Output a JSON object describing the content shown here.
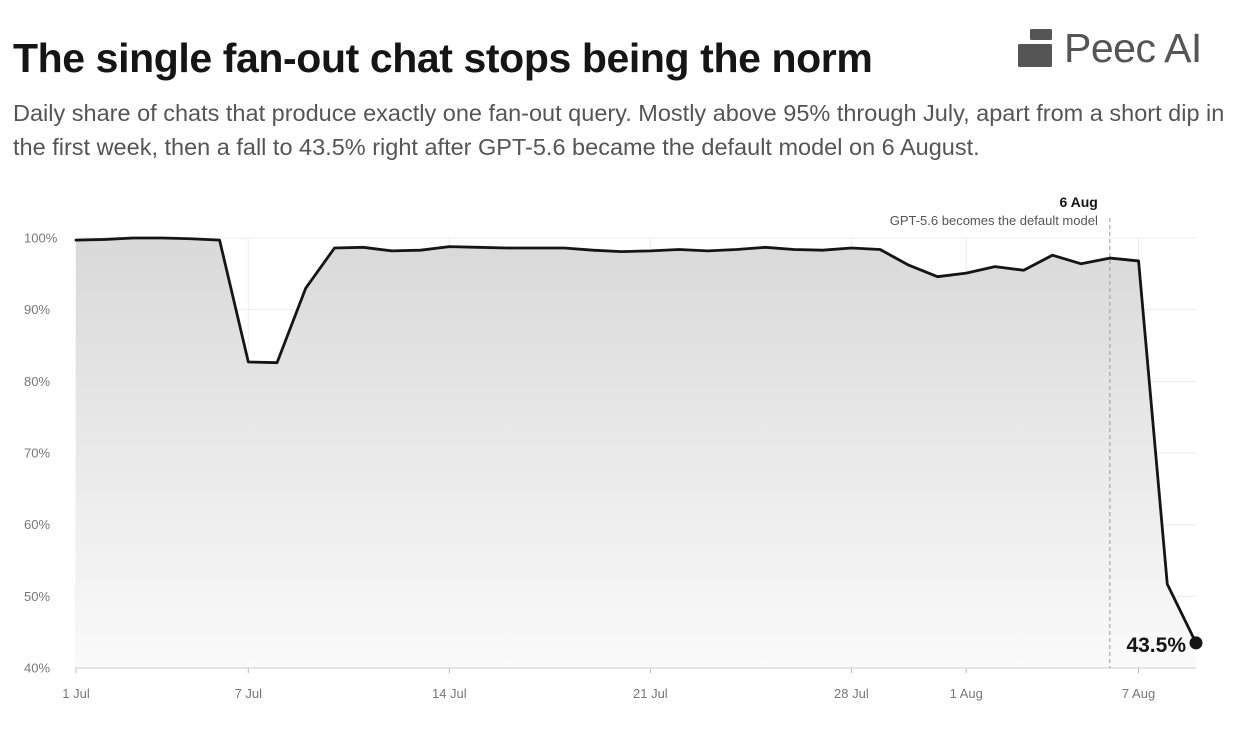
{
  "title": "The single fan-out chat stops being the norm",
  "subtitle": "Daily share of chats that produce exactly one fan-out query. Mostly above 95% through July, apart from a short dip in the first week, then a fall to 43.5% right after GPT-5.6 became the default model on 6 August.",
  "brand": {
    "name": "Peec AI",
    "icon": "peec-ai-logo-icon"
  },
  "colors": {
    "line": "#151515",
    "grid": "#ececec",
    "area_top": "#d9d9d9",
    "area_bottom": "#fafafa"
  },
  "chart_data": {
    "type": "area",
    "x_type": "date",
    "x": [
      "2025-07-01",
      "2025-07-02",
      "2025-07-03",
      "2025-07-04",
      "2025-07-05",
      "2025-07-06",
      "2025-07-07",
      "2025-07-08",
      "2025-07-09",
      "2025-07-10",
      "2025-07-11",
      "2025-07-12",
      "2025-07-13",
      "2025-07-14",
      "2025-07-15",
      "2025-07-16",
      "2025-07-17",
      "2025-07-18",
      "2025-07-19",
      "2025-07-20",
      "2025-07-21",
      "2025-07-22",
      "2025-07-23",
      "2025-07-24",
      "2025-07-25",
      "2025-07-26",
      "2025-07-27",
      "2025-07-28",
      "2025-07-29",
      "2025-07-30",
      "2025-07-31",
      "2025-08-01",
      "2025-08-02",
      "2025-08-03",
      "2025-08-04",
      "2025-08-05",
      "2025-08-06",
      "2025-08-07",
      "2025-08-08",
      "2025-08-09"
    ],
    "series": [
      {
        "values": [
          99.7,
          99.8,
          100.0,
          100.0,
          99.9,
          99.7,
          82.7,
          82.6,
          93.0,
          98.6,
          98.7,
          98.2,
          98.3,
          98.8,
          98.7,
          98.6,
          98.6,
          98.6,
          98.3,
          98.1,
          98.2,
          98.4,
          98.2,
          98.4,
          98.7,
          98.4,
          98.3,
          98.6,
          98.4,
          96.2,
          94.6,
          95.1,
          96.0,
          95.5,
          97.6,
          96.4,
          97.2,
          96.8,
          51.7,
          43.5
        ]
      }
    ],
    "ylim": [
      40,
      100
    ],
    "y_ticks": [
      40,
      50,
      60,
      70,
      80,
      90,
      100
    ],
    "y_tick_labels": [
      "40%",
      "50%",
      "60%",
      "70%",
      "80%",
      "90%",
      "100%"
    ],
    "x_ticks": [
      "2025-07-01",
      "2025-07-07",
      "2025-07-14",
      "2025-07-21",
      "2025-07-28",
      "2025-08-01",
      "2025-08-07"
    ],
    "x_tick_labels": [
      "1 Jul",
      "7 Jul",
      "14 Jul",
      "21 Jul",
      "28 Jul",
      "1 Aug",
      "7 Aug"
    ],
    "grid": true,
    "annotations": [
      {
        "x": "2025-08-06",
        "label": "6 Aug",
        "note": "GPT-5.6 becomes the default model"
      }
    ],
    "end_label": "43.5%"
  }
}
